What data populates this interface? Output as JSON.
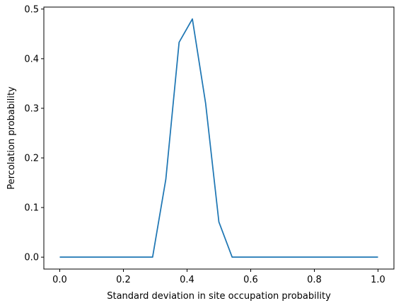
{
  "chart_data": {
    "type": "line",
    "title": "",
    "xlabel": "Standard deviation in site occupation probability",
    "ylabel": "Percolation probability",
    "xlim": [
      -0.05,
      1.05
    ],
    "ylim": [
      -0.024,
      0.504
    ],
    "grid": false,
    "xticks": [
      0.0,
      0.2,
      0.4,
      0.6,
      0.8,
      1.0
    ],
    "xtick_labels": [
      "0.0",
      "0.2",
      "0.4",
      "0.6",
      "0.8",
      "1.0"
    ],
    "yticks": [
      0.0,
      0.1,
      0.2,
      0.3,
      0.4,
      0.5
    ],
    "ytick_labels": [
      "0.0",
      "0.1",
      "0.2",
      "0.3",
      "0.4",
      "0.5"
    ],
    "series": [
      {
        "color": "#1f77b4",
        "x": [
          0.0,
          0.0417,
          0.0833,
          0.125,
          0.1667,
          0.2083,
          0.25,
          0.2917,
          0.3333,
          0.375,
          0.4167,
          0.4583,
          0.5,
          0.5417,
          0.5833,
          0.625,
          0.6667,
          0.7083,
          0.75,
          0.7917,
          0.8333,
          0.875,
          0.9167,
          0.9583,
          1.0
        ],
        "y": [
          0.0,
          0.0,
          0.0,
          0.0,
          0.0,
          0.0,
          0.0,
          0.0,
          0.157,
          0.433,
          0.48,
          0.31,
          0.071,
          0.0,
          0.0,
          0.0,
          0.0,
          0.0,
          0.0,
          0.0,
          0.0,
          0.0,
          0.0,
          0.0,
          0.0
        ]
      }
    ]
  }
}
